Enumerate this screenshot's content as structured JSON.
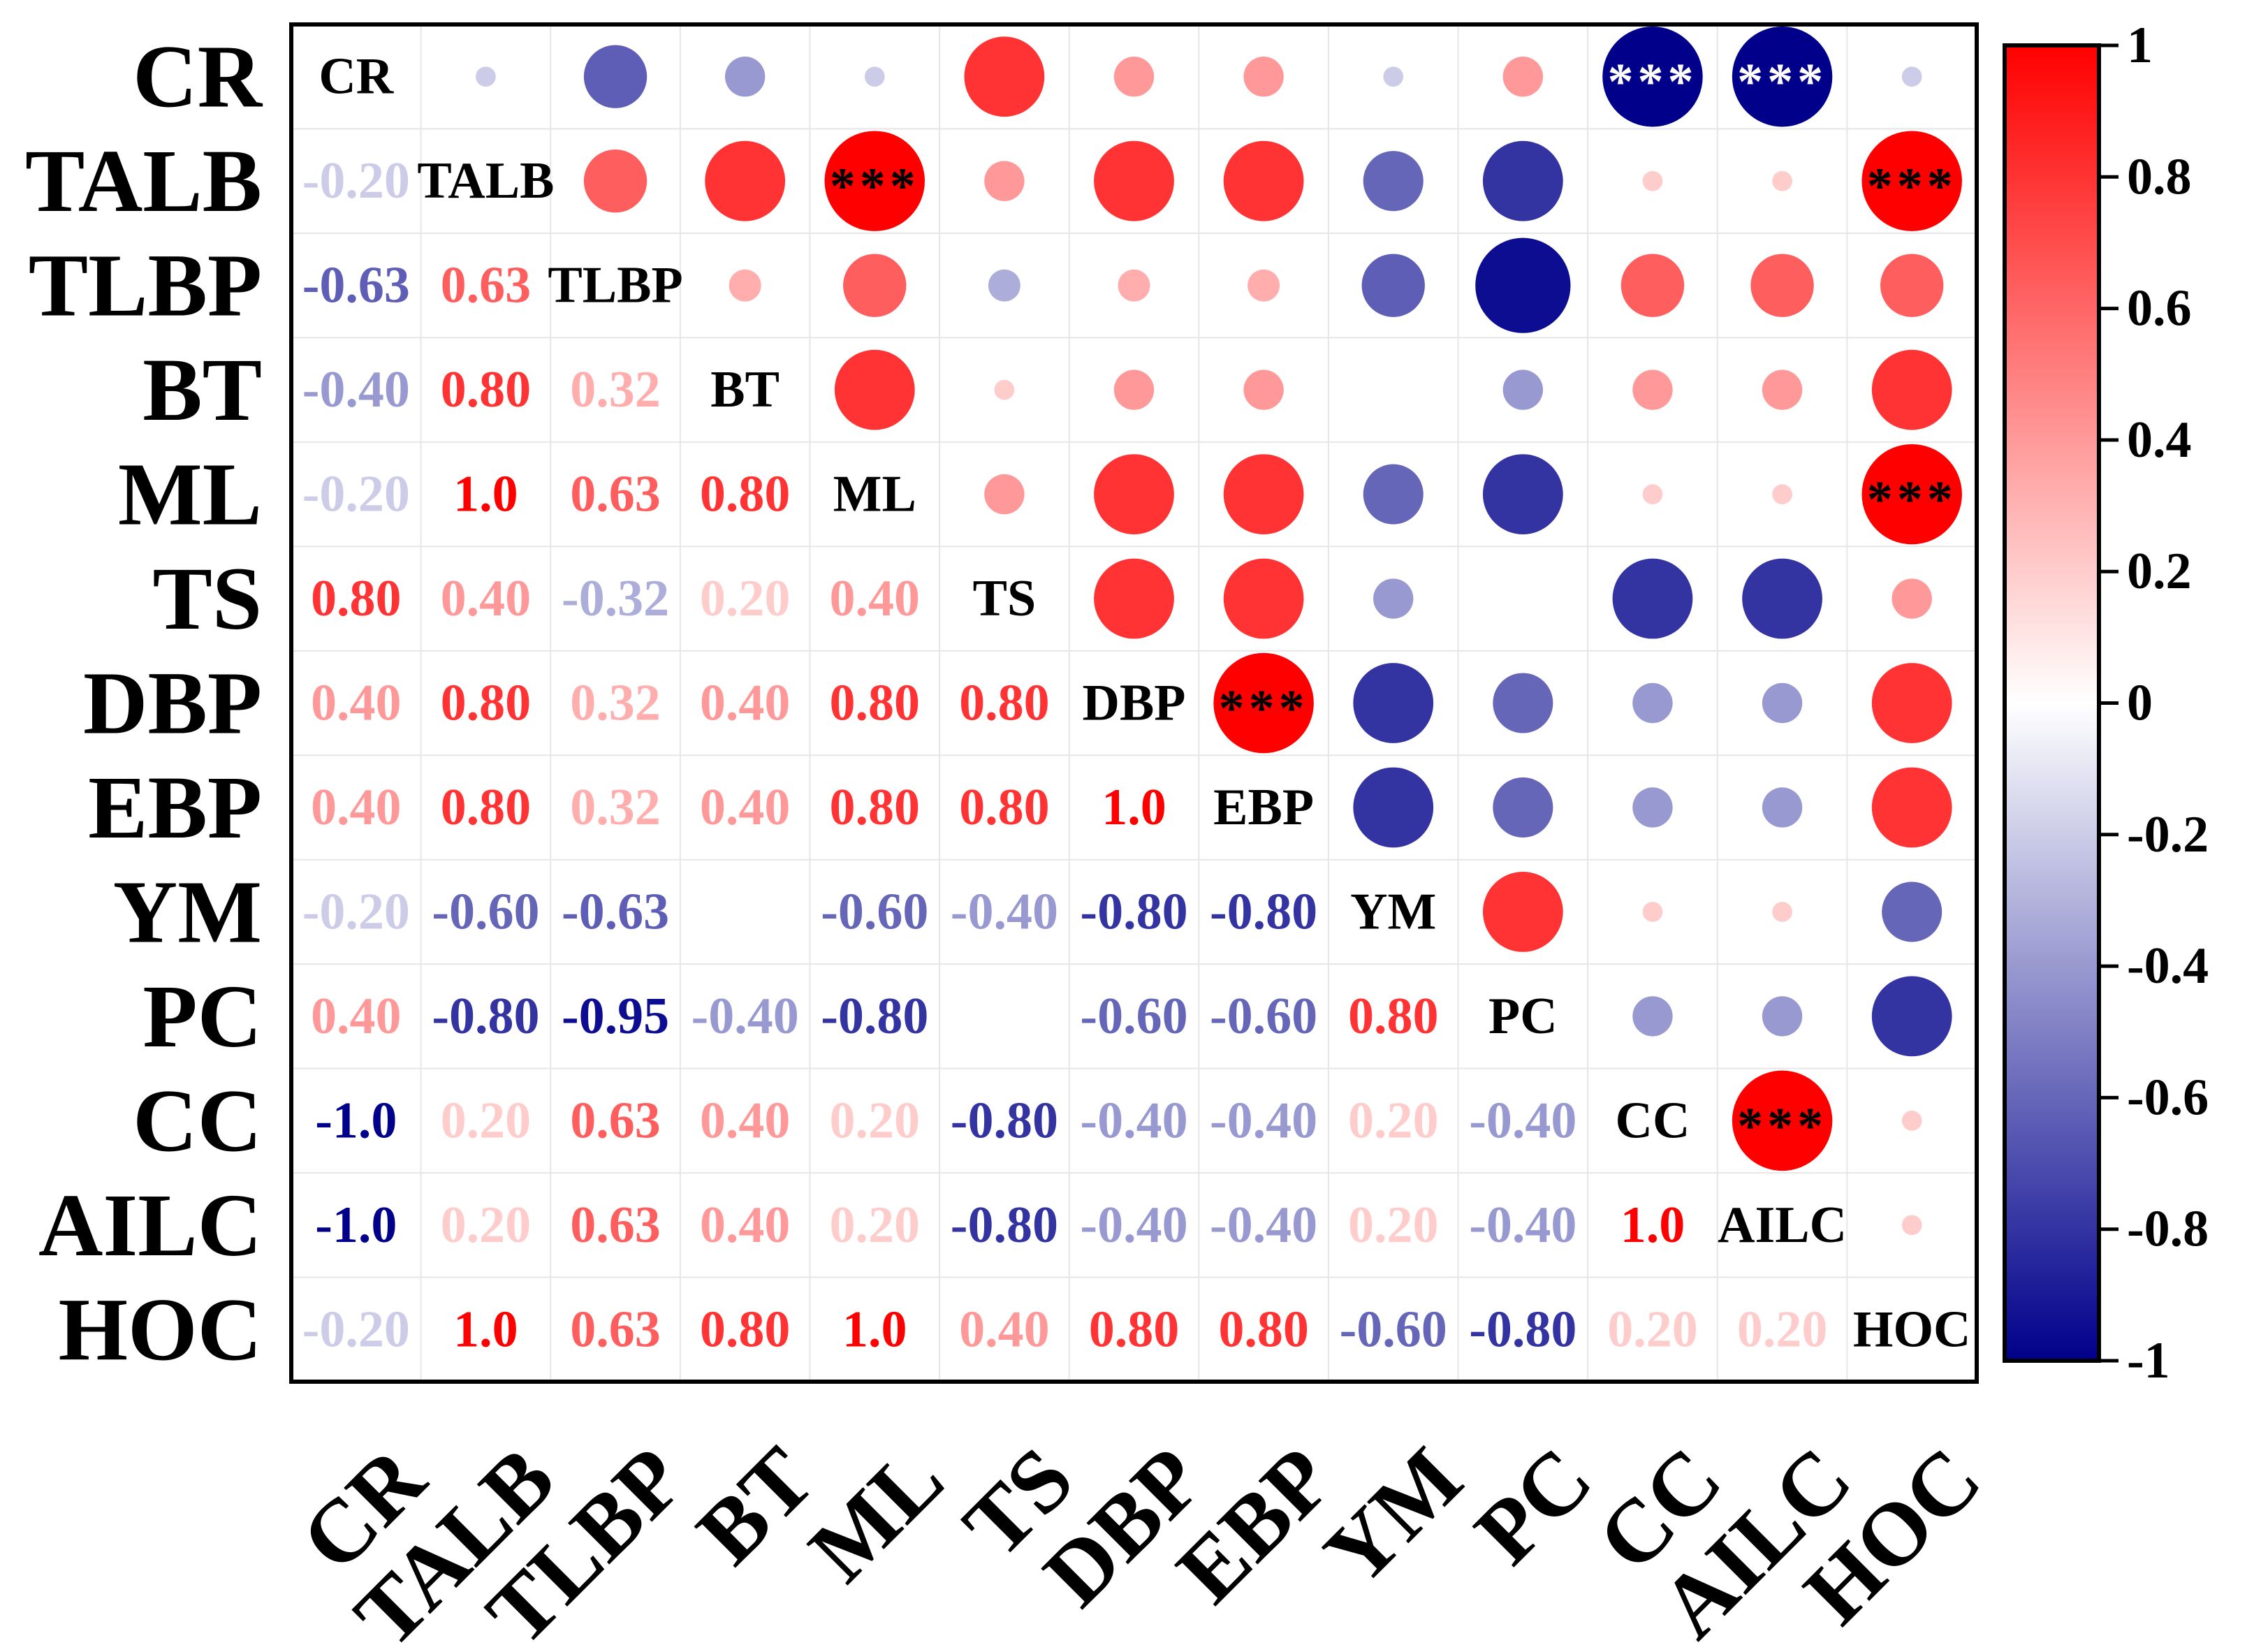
{
  "chart_data": {
    "type": "heatmap",
    "subtype": "correlation-matrix",
    "lower_triangle": "number",
    "upper_triangle": "circle",
    "variables": [
      "CR",
      "TALB",
      "TLBP",
      "BT",
      "ML",
      "TS",
      "DBP",
      "EBP",
      "YM",
      "PC",
      "CC",
      "AILC",
      "HOC"
    ],
    "matrix": [
      [
        1.0,
        -0.2,
        -0.63,
        -0.4,
        -0.2,
        0.8,
        0.4,
        0.4,
        -0.2,
        0.4,
        -1.0,
        -1.0,
        -0.2
      ],
      [
        -0.2,
        1.0,
        0.63,
        0.8,
        1.0,
        0.4,
        0.8,
        0.8,
        -0.6,
        -0.8,
        0.2,
        0.2,
        1.0
      ],
      [
        -0.63,
        0.63,
        1.0,
        0.32,
        0.63,
        -0.32,
        0.32,
        0.32,
        -0.63,
        -0.95,
        0.63,
        0.63,
        0.63
      ],
      [
        -0.4,
        0.8,
        0.32,
        1.0,
        0.8,
        0.2,
        0.4,
        0.4,
        0.0,
        -0.4,
        0.4,
        0.4,
        0.8
      ],
      [
        -0.2,
        1.0,
        0.63,
        0.8,
        1.0,
        0.4,
        0.8,
        0.8,
        -0.6,
        -0.8,
        0.2,
        0.2,
        1.0
      ],
      [
        0.8,
        0.4,
        -0.32,
        0.2,
        0.4,
        1.0,
        0.8,
        0.8,
        -0.4,
        0.0,
        -0.8,
        -0.8,
        0.4
      ],
      [
        0.4,
        0.8,
        0.32,
        0.4,
        0.8,
        0.8,
        1.0,
        1.0,
        -0.8,
        -0.6,
        -0.4,
        -0.4,
        0.8
      ],
      [
        0.4,
        0.8,
        0.32,
        0.4,
        0.8,
        0.8,
        1.0,
        1.0,
        -0.8,
        -0.6,
        -0.4,
        -0.4,
        0.8
      ],
      [
        -0.2,
        -0.6,
        -0.63,
        0.0,
        -0.6,
        -0.4,
        -0.8,
        -0.8,
        1.0,
        0.8,
        0.2,
        0.2,
        -0.6
      ],
      [
        0.4,
        -0.8,
        -0.95,
        -0.4,
        -0.8,
        0.0,
        -0.6,
        -0.6,
        0.8,
        1.0,
        -0.4,
        -0.4,
        -0.8
      ],
      [
        -1.0,
        0.2,
        0.63,
        0.4,
        0.2,
        -0.8,
        -0.4,
        -0.4,
        0.2,
        -0.4,
        1.0,
        1.0,
        0.2
      ],
      [
        -1.0,
        0.2,
        0.63,
        0.4,
        0.2,
        -0.8,
        -0.4,
        -0.4,
        0.2,
        -0.4,
        1.0,
        1.0,
        0.2
      ],
      [
        -0.2,
        1.0,
        0.63,
        0.8,
        1.0,
        0.4,
        0.8,
        0.8,
        -0.6,
        -0.8,
        0.2,
        0.2,
        1.0
      ]
    ],
    "lower_labels": [
      [
        "",
        "",
        "",
        "",
        "",
        "",
        "",
        "",
        "",
        "",
        "",
        "",
        ""
      ],
      [
        "-0.20",
        "",
        "",
        "",
        "",
        "",
        "",
        "",
        "",
        "",
        "",
        "",
        ""
      ],
      [
        "-0.63",
        "0.63",
        "",
        "",
        "",
        "",
        "",
        "",
        "",
        "",
        "",
        "",
        ""
      ],
      [
        "-0.40",
        "0.80",
        "0.32",
        "",
        "",
        "",
        "",
        "",
        "",
        "",
        "",
        "",
        ""
      ],
      [
        "-0.20",
        "1.0",
        "0.63",
        "0.80",
        "",
        "",
        "",
        "",
        "",
        "",
        "",
        "",
        ""
      ],
      [
        "0.80",
        "0.40",
        "-0.32",
        "0.20",
        "0.40",
        "",
        "",
        "",
        "",
        "",
        "",
        "",
        ""
      ],
      [
        "0.40",
        "0.80",
        "0.32",
        "0.40",
        "0.80",
        "0.80",
        "",
        "",
        "",
        "",
        "",
        "",
        ""
      ],
      [
        "0.40",
        "0.80",
        "0.32",
        "0.40",
        "0.80",
        "0.80",
        "1.0",
        "",
        "",
        "",
        "",
        "",
        ""
      ],
      [
        "-0.20",
        "-0.60",
        "-0.63",
        "",
        "-0.60",
        "-0.40",
        "-0.80",
        "-0.80",
        "",
        "",
        "",
        "",
        ""
      ],
      [
        "0.40",
        "-0.80",
        "-0.95",
        "-0.40",
        "-0.80",
        "",
        "-0.60",
        "-0.60",
        "0.80",
        "",
        "",
        "",
        ""
      ],
      [
        "-1.0",
        "0.20",
        "0.63",
        "0.40",
        "0.20",
        "-0.80",
        "-0.40",
        "-0.40",
        "0.20",
        "-0.40",
        "",
        "",
        ""
      ],
      [
        "-1.0",
        "0.20",
        "0.63",
        "0.40",
        "0.20",
        "-0.80",
        "-0.40",
        "-0.40",
        "0.20",
        "-0.40",
        "1.0",
        "",
        ""
      ],
      [
        "-0.20",
        "1.0",
        "0.63",
        "0.80",
        "1.0",
        "0.40",
        "0.80",
        "0.80",
        "-0.60",
        "-0.80",
        "0.20",
        "0.20",
        ""
      ]
    ],
    "significance": [
      {
        "row": 0,
        "col": 10,
        "label": "***",
        "color": "#ffffff"
      },
      {
        "row": 0,
        "col": 11,
        "label": "***",
        "color": "#ffffff"
      },
      {
        "row": 1,
        "col": 4,
        "label": "***",
        "color": "#000000"
      },
      {
        "row": 1,
        "col": 12,
        "label": "***",
        "color": "#000000"
      },
      {
        "row": 4,
        "col": 12,
        "label": "***",
        "color": "#000000"
      },
      {
        "row": 6,
        "col": 7,
        "label": "***",
        "color": "#000000"
      },
      {
        "row": 10,
        "col": 11,
        "label": "***",
        "color": "#000000"
      }
    ],
    "colorbar": {
      "range": [
        -1,
        1
      ],
      "ticks": [
        "1",
        "0.8",
        "0.6",
        "0.4",
        "0.2",
        "0",
        "-0.2",
        "-0.4",
        "-0.6",
        "-0.8",
        "-1"
      ],
      "tick_values": [
        1,
        0.8,
        0.6,
        0.4,
        0.2,
        0,
        -0.2,
        -0.4,
        -0.6,
        -0.8,
        -1
      ],
      "colors": {
        "negative": "#00008b",
        "zero": "#ffffff",
        "positive": "#ff0000"
      }
    },
    "grid": true,
    "title": "",
    "xlabel": "",
    "ylabel": ""
  }
}
